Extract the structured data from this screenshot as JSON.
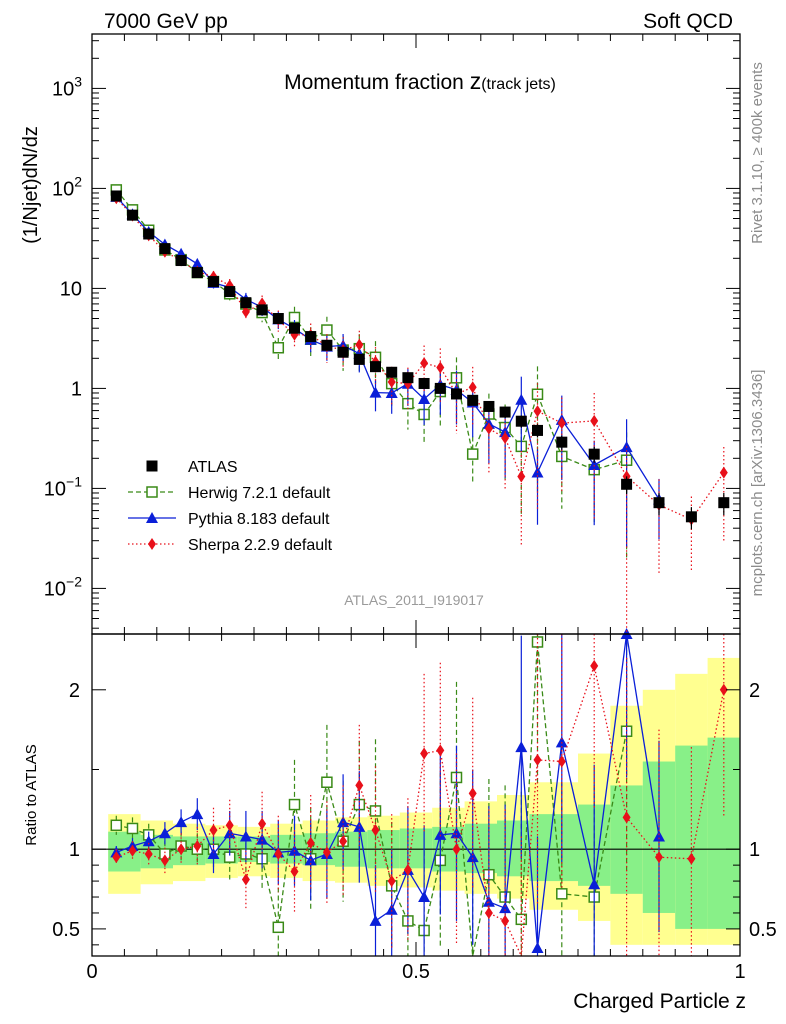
{
  "header": {
    "left": "7000 GeV pp",
    "right": "Soft QCD"
  },
  "side_labels": {
    "rivet": "Rivet 3.1.10, ≥ 400k events",
    "mcplots": "mcplots.cern.ch [arXiv:1306.3436]"
  },
  "chart_data": {
    "type": "scatter",
    "title_main": "Momentum fraction ",
    "title_z": "z",
    "title_sub": "(track jets)",
    "analysis_label": "ATLAS_2011_I919017",
    "ylabel": "(1/Njet)dN/dz",
    "ratio_ylabel": "Ratio to ATLAS",
    "xlabel": "Charged Particle z",
    "xlim": [
      0,
      1
    ],
    "ylim_log": [
      0.0035,
      3500
    ],
    "ratio_ylim": [
      0.33,
      2.35
    ],
    "x_ticks": [
      "0",
      "0.5",
      "1"
    ],
    "y_ticks": [
      {
        "base": "10",
        "exp": "−2",
        "value": 0.01
      },
      {
        "base": "10",
        "exp": "−1",
        "value": 0.1
      },
      {
        "base": "1",
        "exp": "",
        "value": 1
      },
      {
        "base": "10",
        "exp": "",
        "value": 10
      },
      {
        "base": "10",
        "exp": "2",
        "value": 100
      },
      {
        "base": "10",
        "exp": "3",
        "value": 1000
      }
    ],
    "ratio_ticks": [
      "0.5",
      "1",
      "2"
    ],
    "legend": [
      {
        "key": "atlas",
        "label": "ATLAS"
      },
      {
        "key": "herwig",
        "label": "Herwig 7.2.1 default"
      },
      {
        "key": "pythia",
        "label": "Pythia 8.183 default"
      },
      {
        "key": "sherpa",
        "label": "Sherpa 2.2.9 default"
      }
    ],
    "colors": {
      "atlas": "#000000",
      "herwig": "#3a8a17",
      "pythia": "#0a1fd8",
      "sherpa": "#e8101a",
      "band_yellow": "#ffff90",
      "band_green": "#88f088"
    },
    "x": [
      0.0375,
      0.0625,
      0.0875,
      0.1125,
      0.1375,
      0.1625,
      0.1875,
      0.2125,
      0.2375,
      0.2625,
      0.2875,
      0.3125,
      0.3375,
      0.3625,
      0.3875,
      0.4125,
      0.4375,
      0.4625,
      0.4875,
      0.5125,
      0.5375,
      0.5625,
      0.5875,
      0.6125,
      0.6375,
      0.6625,
      0.6875,
      0.725,
      0.775,
      0.825,
      0.875,
      0.925,
      0.975
    ],
    "atlas": [
      84,
      54,
      35,
      25,
      19,
      14.4,
      11.7,
      9.3,
      7.2,
      6.1,
      5.0,
      4.0,
      3.3,
      2.7,
      2.3,
      1.95,
      1.65,
      1.45,
      1.28,
      1.12,
      1.0,
      0.88,
      0.76,
      0.66,
      0.58,
      0.47,
      0.38,
      0.29,
      0.22,
      0.11,
      0.072,
      0.052,
      0.072
    ],
    "atlas_err": [
      0.04,
      0.04,
      0.04,
      0.04,
      0.05,
      0.05,
      0.05,
      0.05,
      0.05,
      0.05,
      0.06,
      0.06,
      0.06,
      0.07,
      0.07,
      0.07,
      0.08,
      0.08,
      0.09,
      0.09,
      0.1,
      0.1,
      0.11,
      0.12,
      0.13,
      0.14,
      0.15,
      0.16,
      0.18,
      0.2,
      0.25,
      0.25,
      0.25
    ],
    "ratio_bands": [
      {
        "x0": 0.025,
        "x1": 0.075,
        "g": [
          0.86,
          1.11
        ],
        "y": [
          0.72,
          1.22
        ]
      },
      {
        "x0": 0.075,
        "x1": 0.125,
        "g": [
          0.88,
          1.09
        ],
        "y": [
          0.78,
          1.18
        ]
      },
      {
        "x0": 0.125,
        "x1": 0.175,
        "g": [
          0.9,
          1.08
        ],
        "y": [
          0.8,
          1.16
        ]
      },
      {
        "x0": 0.175,
        "x1": 0.225,
        "g": [
          0.91,
          1.08
        ],
        "y": [
          0.82,
          1.15
        ]
      },
      {
        "x0": 0.225,
        "x1": 0.275,
        "g": [
          0.92,
          1.08
        ],
        "y": [
          0.83,
          1.14
        ]
      },
      {
        "x0": 0.275,
        "x1": 0.325,
        "g": [
          0.91,
          1.09
        ],
        "y": [
          0.82,
          1.16
        ]
      },
      {
        "x0": 0.325,
        "x1": 0.375,
        "g": [
          0.9,
          1.1
        ],
        "y": [
          0.8,
          1.18
        ]
      },
      {
        "x0": 0.375,
        "x1": 0.425,
        "g": [
          0.89,
          1.11
        ],
        "y": [
          0.79,
          1.2
        ]
      },
      {
        "x0": 0.425,
        "x1": 0.475,
        "g": [
          0.88,
          1.12
        ],
        "y": [
          0.77,
          1.21
        ]
      },
      {
        "x0": 0.475,
        "x1": 0.525,
        "g": [
          0.88,
          1.13
        ],
        "y": [
          0.76,
          1.23
        ]
      },
      {
        "x0": 0.525,
        "x1": 0.575,
        "g": [
          0.86,
          1.14
        ],
        "y": [
          0.74,
          1.26
        ]
      },
      {
        "x0": 0.575,
        "x1": 0.625,
        "g": [
          0.85,
          1.16
        ],
        "y": [
          0.72,
          1.3
        ]
      },
      {
        "x0": 0.625,
        "x1": 0.675,
        "g": [
          0.83,
          1.18
        ],
        "y": [
          0.69,
          1.34
        ]
      },
      {
        "x0": 0.675,
        "x1": 0.75,
        "g": [
          0.8,
          1.22
        ],
        "y": [
          0.62,
          1.42
        ]
      },
      {
        "x0": 0.75,
        "x1": 0.8,
        "g": [
          0.77,
          1.28
        ],
        "y": [
          0.55,
          1.6
        ]
      },
      {
        "x0": 0.8,
        "x1": 0.85,
        "g": [
          0.72,
          1.4
        ],
        "y": [
          0.4,
          1.9
        ]
      },
      {
        "x0": 0.85,
        "x1": 0.9,
        "g": [
          0.6,
          1.55
        ],
        "y": [
          0.4,
          2.0
        ]
      },
      {
        "x0": 0.9,
        "x1": 0.95,
        "g": [
          0.5,
          1.65
        ],
        "y": [
          0.4,
          2.1
        ]
      },
      {
        "x0": 0.95,
        "x1": 1.0,
        "g": [
          0.5,
          1.7
        ],
        "y": [
          0.4,
          2.2
        ]
      }
    ],
    "series": [
      {
        "key": "herwig",
        "name": "Herwig 7.2.1 default",
        "style": "dash",
        "marker": "open-square",
        "ratio": [
          1.15,
          1.13,
          1.09,
          0.97,
          1.02,
          1.0,
          1.0,
          0.95,
          0.97,
          0.94,
          0.51,
          1.28,
          0.94,
          1.42,
          1.05,
          1.28,
          1.24,
          0.77,
          0.55,
          0.49,
          0.93,
          1.45,
          0.29,
          0.84,
          0.7,
          0.56,
          2.3,
          0.72,
          0.7,
          1.74,
          null,
          null,
          null
        ],
        "ratio_err": [
          0.06,
          0.07,
          0.07,
          0.08,
          0.09,
          0.1,
          0.12,
          0.14,
          0.17,
          0.2,
          0.25,
          0.28,
          0.32,
          0.36,
          0.38,
          0.4,
          0.45,
          0.4,
          0.45,
          0.5,
          0.55,
          0.6,
          0.5,
          0.6,
          0.7,
          0.8,
          0.9,
          0.7,
          0.7,
          0.9,
          0,
          0,
          0
        ]
      },
      {
        "key": "pythia",
        "name": "Pythia 8.183 default",
        "style": "solid",
        "marker": "triangle",
        "ratio": [
          0.98,
          1.02,
          1.05,
          1.1,
          1.17,
          1.22,
          0.97,
          1.1,
          1.08,
          1.06,
          0.98,
          0.99,
          0.93,
          0.97,
          1.17,
          1.14,
          0.55,
          0.62,
          0.87,
          0.7,
          1.09,
          1.1,
          0.95,
          0.67,
          0.63,
          1.64,
          0.38,
          1.67,
          0.78,
          2.35,
          1.08,
          null,
          null
        ],
        "ratio_err": [
          0.04,
          0.05,
          0.06,
          0.07,
          0.08,
          0.1,
          0.12,
          0.14,
          0.16,
          0.18,
          0.2,
          0.22,
          0.25,
          0.28,
          0.3,
          0.35,
          0.35,
          0.38,
          0.4,
          0.45,
          0.5,
          0.55,
          0.55,
          0.6,
          0.65,
          0.7,
          0.7,
          0.75,
          0.75,
          0.9,
          0.6,
          0,
          0
        ]
      },
      {
        "key": "sherpa",
        "name": "Sherpa 2.2.9 default",
        "style": "dot",
        "marker": "diamond",
        "ratio": [
          0.95,
          0.99,
          0.97,
          0.93,
          1.0,
          1.02,
          1.12,
          1.15,
          0.81,
          1.16,
          0.97,
          0.86,
          1.04,
          0.98,
          1.05,
          1.4,
          1.12,
          0.8,
          0.87,
          1.6,
          1.62,
          1.0,
          1.35,
          0.6,
          0.55,
          0.28,
          1.56,
          1.55,
          2.15,
          1.2,
          0.95,
          0.94,
          2.0
        ],
        "ratio_err": [
          0.05,
          0.06,
          0.07,
          0.08,
          0.1,
          0.12,
          0.14,
          0.16,
          0.18,
          0.2,
          0.24,
          0.26,
          0.3,
          0.32,
          0.35,
          0.38,
          0.4,
          0.42,
          0.45,
          0.5,
          0.55,
          0.6,
          0.6,
          0.65,
          0.7,
          0.8,
          0.9,
          0.8,
          0.9,
          1.0,
          0.8,
          0.7,
          0.8
        ]
      }
    ]
  }
}
